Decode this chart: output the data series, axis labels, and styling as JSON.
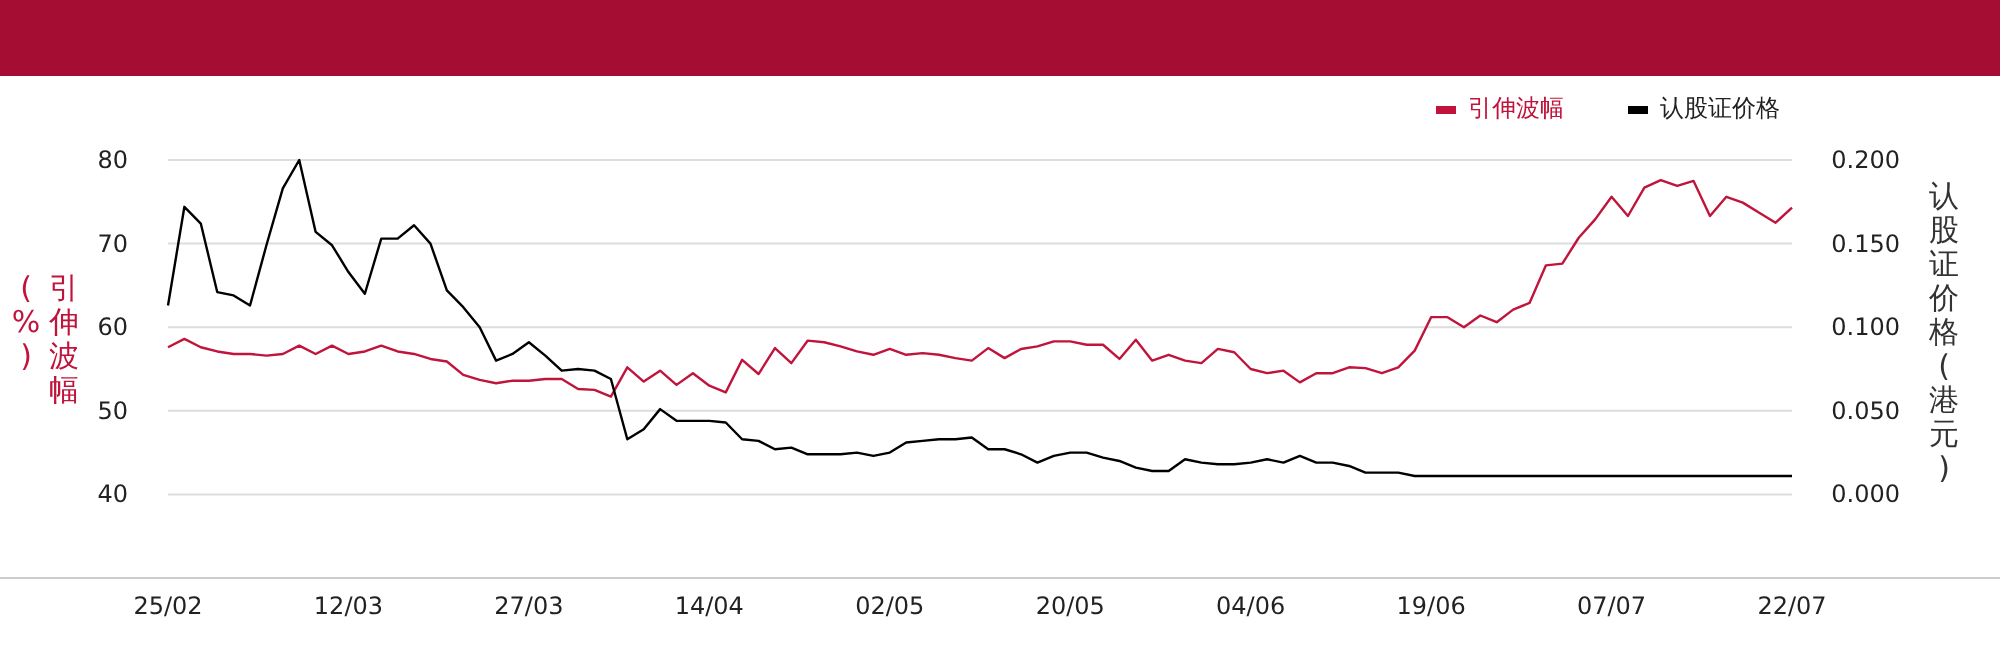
{
  "chart_data": {
    "type": "line",
    "categories": [
      "25/02",
      null,
      null,
      null,
      null,
      null,
      null,
      null,
      null,
      null,
      null,
      "12/03",
      null,
      null,
      null,
      null,
      null,
      null,
      null,
      null,
      null,
      null,
      "27/03",
      null,
      null,
      null,
      null,
      null,
      null,
      null,
      null,
      null,
      null,
      "14/04",
      null,
      null,
      null,
      null,
      null,
      null,
      null,
      null,
      null,
      null,
      "02/05",
      null,
      null,
      null,
      null,
      null,
      null,
      null,
      null,
      null,
      null,
      "20/05",
      null,
      null,
      null,
      null,
      null,
      null,
      null,
      null,
      null,
      null,
      "04/06",
      null,
      null,
      null,
      null,
      null,
      null,
      null,
      null,
      null,
      null,
      "19/06",
      null,
      null,
      null,
      null,
      null,
      null,
      null,
      null,
      null,
      null,
      "07/07",
      null,
      null,
      null,
      null,
      null,
      null,
      null,
      null,
      null,
      null,
      "22/07"
    ],
    "series": [
      {
        "name": "引伸波幅",
        "color": "#c0143c",
        "values": [
          57.6,
          58.6,
          57.6,
          57.1,
          56.8,
          56.8,
          56.6,
          56.8,
          57.8,
          56.8,
          57.8,
          56.8,
          57.1,
          57.8,
          57.1,
          56.8,
          56.2,
          55.9,
          54.3,
          53.7,
          53.3,
          53.6,
          53.6,
          53.8,
          53.8,
          52.6,
          52.5,
          51.7,
          55.2,
          53.5,
          54.8,
          53.1,
          54.5,
          53.0,
          52.2,
          56.1,
          54.4,
          57.5,
          55.7,
          58.4,
          58.2,
          57.7,
          57.1,
          56.7,
          57.4,
          56.7,
          56.9,
          56.7,
          56.3,
          56.0,
          57.5,
          56.3,
          57.4,
          57.7,
          58.3,
          58.3,
          57.9,
          57.9,
          56.2,
          58.5,
          56.0,
          56.7,
          56.0,
          55.7,
          57.4,
          57.0,
          55.0,
          54.5,
          54.8,
          53.4,
          54.5,
          54.5,
          55.2,
          55.1,
          54.5,
          55.2,
          57.2,
          61.2,
          61.2,
          60.0,
          61.4,
          60.6,
          62.1,
          62.9,
          67.4,
          67.6,
          70.7,
          72.9,
          75.6,
          73.3,
          76.7,
          77.6,
          76.9,
          77.5,
          73.3,
          75.6,
          74.9,
          73.7,
          72.5,
          74.3
        ]
      },
      {
        "name": "认股证价格",
        "color": "#000000",
        "axis": "y2",
        "values": [
          0.113,
          0.172,
          0.162,
          0.121,
          0.119,
          0.113,
          0.149,
          0.183,
          0.2,
          0.157,
          0.149,
          0.133,
          0.12,
          0.153,
          0.153,
          0.161,
          0.15,
          0.122,
          0.112,
          0.1,
          0.08,
          0.084,
          0.091,
          0.083,
          0.074,
          0.075,
          0.074,
          0.069,
          0.033,
          0.039,
          0.051,
          0.044,
          0.044,
          0.044,
          0.043,
          0.033,
          0.032,
          0.027,
          0.028,
          0.024,
          0.024,
          0.024,
          0.025,
          0.023,
          0.025,
          0.031,
          0.032,
          0.033,
          0.033,
          0.034,
          0.027,
          0.027,
          0.024,
          0.019,
          0.023,
          0.025,
          0.025,
          0.022,
          0.02,
          0.016,
          0.014,
          0.014,
          0.021,
          0.019,
          0.018,
          0.018,
          0.019,
          0.021,
          0.019,
          0.023,
          0.019,
          0.019,
          0.017,
          0.013,
          0.013,
          0.013,
          0.011,
          0.011,
          0.011,
          0.011,
          0.011,
          0.011,
          0.011,
          0.011,
          0.011,
          0.011,
          0.011,
          0.011,
          0.011,
          0.011,
          0.011,
          0.011,
          0.011,
          0.011,
          0.011,
          0.011,
          0.011,
          0.011,
          0.011,
          0.011
        ]
      }
    ],
    "ylabel": "引伸波幅(%)",
    "y2label": "认股证价格(港元)",
    "ylim": [
      30,
      80
    ],
    "yticks": [
      40,
      50,
      60,
      70,
      80
    ],
    "y2lim": [
      -0.05,
      0.2
    ],
    "y2ticks": [
      {
        "value": 0,
        "label": "0.000"
      },
      {
        "value": 0.05,
        "label": "0.050"
      },
      {
        "value": 0.1,
        "label": "0.100"
      },
      {
        "value": 0.15,
        "label": "0.150"
      },
      {
        "value": 0.2,
        "label": "0.200"
      }
    ],
    "grid": "y",
    "legend": "top right",
    "marker": "none",
    "line_style": "solid"
  }
}
